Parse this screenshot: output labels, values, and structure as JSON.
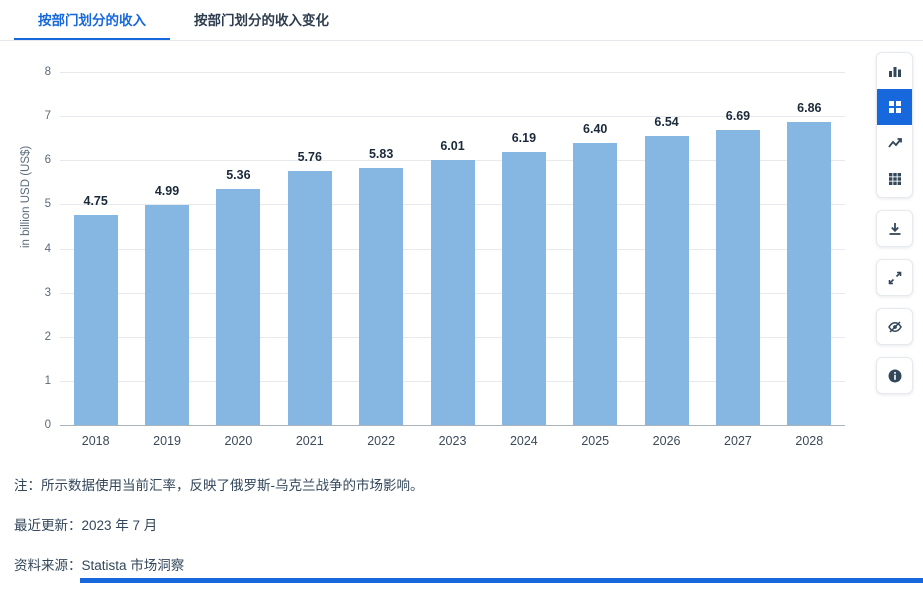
{
  "tabs": [
    {
      "label": "按部门划分的收入",
      "active": true
    },
    {
      "label": "按部门划分的收入变化",
      "active": false
    }
  ],
  "chart_data": {
    "type": "bar",
    "categories": [
      "2018",
      "2019",
      "2020",
      "2021",
      "2022",
      "2023",
      "2024",
      "2025",
      "2026",
      "2027",
      "2028"
    ],
    "values": [
      4.75,
      4.99,
      5.36,
      5.76,
      5.83,
      6.01,
      6.19,
      6.4,
      6.54,
      6.69,
      6.86
    ],
    "value_labels": [
      "4.75",
      "4.99",
      "5.36",
      "5.76",
      "5.83",
      "6.01",
      "6.19",
      "6.40",
      "6.54",
      "6.69",
      "6.86"
    ],
    "title": "",
    "xlabel": "",
    "ylabel": "in billion USD (US$)",
    "ylim": [
      0,
      8
    ],
    "yticks": [
      0,
      1,
      2,
      3,
      4,
      5,
      6,
      7,
      8
    ],
    "grid": true,
    "legend": "none",
    "bar_color": "#86b7e2"
  },
  "toolbar": {
    "buttons": [
      {
        "icon": "bar-chart-icon",
        "selected": false
      },
      {
        "icon": "column-grid-icon",
        "selected": true
      },
      {
        "icon": "line-chart-icon",
        "selected": false
      },
      {
        "icon": "table-icon",
        "selected": false
      },
      {
        "icon": "download-icon",
        "selected": false
      },
      {
        "icon": "fullscreen-icon",
        "selected": false
      },
      {
        "icon": "eye-off-icon",
        "selected": false
      },
      {
        "icon": "info-icon",
        "selected": false
      }
    ]
  },
  "footer": {
    "note": "注：所示数据使用当前汇率，反映了俄罗斯-乌克兰战争的市场影响。",
    "updated": "最近更新：2023 年 7 月",
    "source": "资料来源：Statista 市场洞察"
  },
  "colors": {
    "accent": "#1668dc",
    "bar": "#86b7e2",
    "text": "#33475b"
  }
}
